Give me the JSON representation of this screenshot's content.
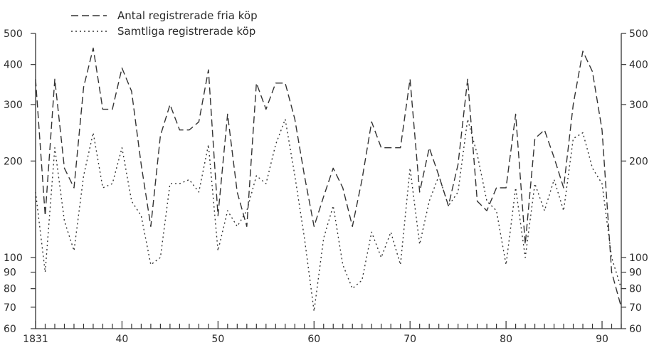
{
  "chart_data": {
    "type": "line",
    "title": "",
    "xlabel": "",
    "ylabel": "",
    "yscale": "log",
    "ylim": [
      60,
      500
    ],
    "xlim": [
      1831,
      1892
    ],
    "grid": false,
    "legend_position": "top-left",
    "x_tick_labels": [
      {
        "year": 1831,
        "label": "1831"
      },
      {
        "year": 1840,
        "label": "40"
      },
      {
        "year": 1850,
        "label": "50"
      },
      {
        "year": 1860,
        "label": "60"
      },
      {
        "year": 1870,
        "label": "70"
      },
      {
        "year": 1880,
        "label": "80"
      },
      {
        "year": 1890,
        "label": "90"
      }
    ],
    "y_ticks": [
      {
        "value": 500,
        "label": "500"
      },
      {
        "value": 400,
        "label": "400"
      },
      {
        "value": 300,
        "label": "300"
      },
      {
        "value": 200,
        "label": "200"
      },
      {
        "value": 100,
        "label": "100"
      },
      {
        "value": 90,
        "label": "90"
      },
      {
        "value": 80,
        "label": "80"
      },
      {
        "value": 70,
        "label": "70"
      },
      {
        "value": 60,
        "label": "60"
      }
    ],
    "x": [
      1831,
      1832,
      1833,
      1834,
      1835,
      1836,
      1837,
      1838,
      1839,
      1840,
      1841,
      1842,
      1843,
      1844,
      1845,
      1846,
      1847,
      1848,
      1849,
      1850,
      1851,
      1852,
      1853,
      1854,
      1855,
      1856,
      1857,
      1858,
      1859,
      1860,
      1861,
      1862,
      1863,
      1864,
      1865,
      1866,
      1867,
      1868,
      1869,
      1870,
      1871,
      1872,
      1873,
      1874,
      1875,
      1876,
      1877,
      1878,
      1879,
      1880,
      1881,
      1882,
      1883,
      1884,
      1885,
      1886,
      1887,
      1888,
      1889,
      1890,
      1891,
      1892
    ],
    "series": [
      {
        "name": "Antal registrerade fria köp",
        "style": "dashed",
        "color": "#333333",
        "values": [
          360,
          135,
          360,
          190,
          165,
          340,
          450,
          290,
          290,
          390,
          330,
          195,
          125,
          240,
          300,
          250,
          250,
          265,
          385,
          135,
          280,
          160,
          125,
          350,
          290,
          350,
          350,
          270,
          180,
          125,
          155,
          190,
          165,
          125,
          175,
          265,
          220,
          220,
          220,
          360,
          160,
          220,
          180,
          145,
          195,
          360,
          150,
          140,
          165,
          165,
          280,
          110,
          235,
          250,
          205,
          165,
          300,
          440,
          380,
          250,
          90,
          70
        ]
      },
      {
        "name": "Samtliga registrerade köp",
        "style": "dotted",
        "color": "#333333",
        "values": [
          160,
          90,
          220,
          130,
          105,
          180,
          245,
          165,
          170,
          220,
          150,
          135,
          95,
          100,
          170,
          170,
          175,
          160,
          225,
          105,
          140,
          125,
          140,
          180,
          170,
          225,
          270,
          180,
          115,
          68,
          115,
          145,
          95,
          80,
          85,
          120,
          100,
          120,
          95,
          190,
          110,
          150,
          180,
          145,
          160,
          270,
          210,
          150,
          140,
          95,
          165,
          100,
          170,
          140,
          175,
          140,
          235,
          245,
          190,
          170,
          100,
          80
        ]
      }
    ]
  }
}
